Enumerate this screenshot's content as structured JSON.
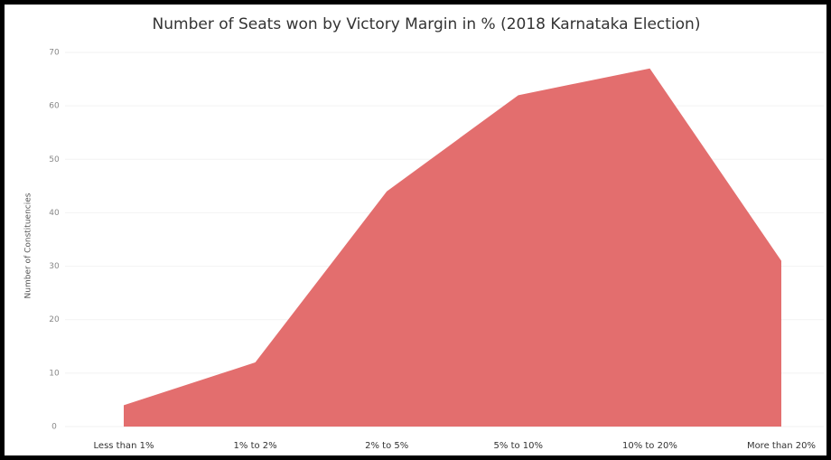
{
  "chart_data": {
    "type": "area",
    "title": "Number of Seats won by Victory Margin in % (2018 Karnataka Election)",
    "y_label": "Number of Constituencies",
    "categories": [
      "Less than 1%",
      "1% to 2%",
      "2% to 5%",
      "5% to 10%",
      "10% to 20%",
      "More than 20%"
    ],
    "values": [
      4,
      12,
      44,
      62,
      67,
      31
    ],
    "color": "#e36e6e",
    "ylim": [
      0,
      70
    ],
    "yticks": [
      0,
      10,
      20,
      30,
      40,
      50,
      60,
      70
    ],
    "grid": true
  }
}
